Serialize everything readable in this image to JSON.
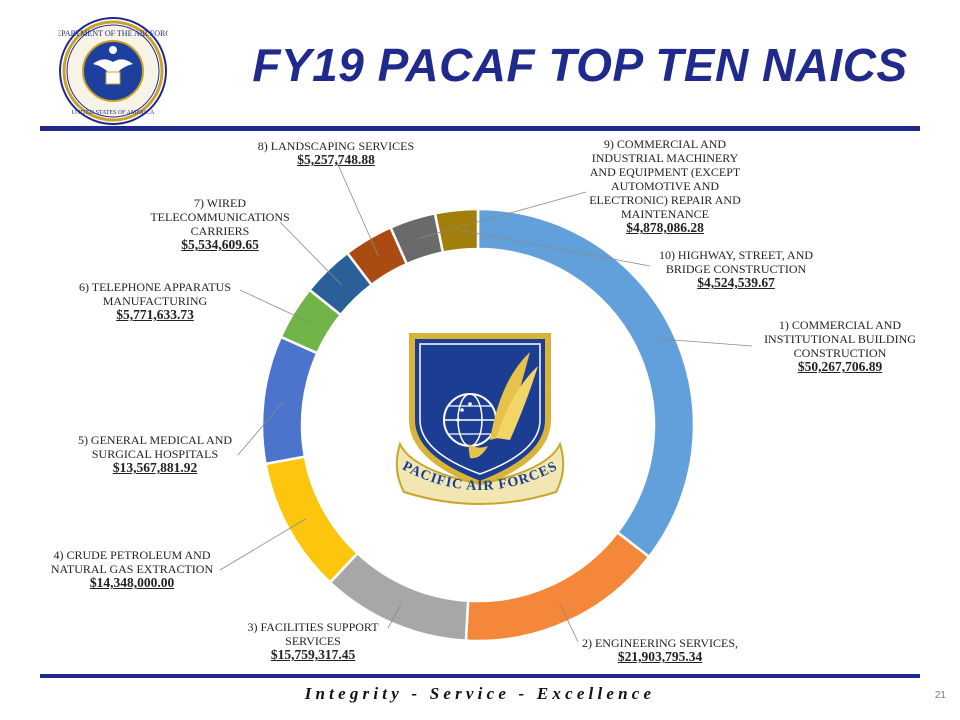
{
  "slide": {
    "title": "FY19 PACAF TOP TEN NAICS",
    "footer": "Integrity - Service - Excellence",
    "page_number": "21"
  },
  "emblem": {
    "text": "PACIFIC AIR FORCES"
  },
  "colors": {
    "title": "#1f2a8c",
    "rule": "#1f2a8c"
  },
  "chart_data": {
    "type": "pie",
    "style": "doughnut",
    "slices": [
      {
        "label": "1) COMMERCIAL AND INSTITUTIONAL BUILDING CONSTRUCTION",
        "value_label": "$50,267,706.89",
        "value": 50267706.89,
        "color": "#62a0db"
      },
      {
        "label": "2) ENGINEERING SERVICES,",
        "value_label": "$21,903,795.34",
        "value": 21903795.34,
        "color": "#f5873a"
      },
      {
        "label": "3) FACILITIES SUPPORT SERVICES",
        "value_label": "$15,759,317.45",
        "value": 15759317.45,
        "color": "#a7a7a7"
      },
      {
        "label": "4) CRUDE PETROLEUM AND NATURAL GAS EXTRACTION",
        "value_label": "$14,348,000.00",
        "value": 14348000.0,
        "color": "#fdc60e"
      },
      {
        "label": "5) GENERAL MEDICAL AND SURGICAL HOSPITALS",
        "value_label": "$13,567,881.92",
        "value": 13567881.92,
        "color": "#4c74cc"
      },
      {
        "label": "6) TELEPHONE APPARATUS MANUFACTURING",
        "value_label": "$5,771,633.73",
        "value": 5771633.73,
        "color": "#71b548"
      },
      {
        "label": "7) WIRED TELECOMMUNICATIONS CARRIERS",
        "value_label": "$5,534,609.65",
        "value": 5534609.65,
        "color": "#2b5f98"
      },
      {
        "label": "8) LANDSCAPING SERVICES",
        "value_label": "$5,257,748.88",
        "value": 5257748.88,
        "color": "#a94b12"
      },
      {
        "label": "9) COMMERCIAL AND INDUSTRIAL MACHINERY AND EQUIPMENT (EXCEPT AUTOMOTIVE AND ELECTRONIC) REPAIR AND MAINTENANCE",
        "value_label": "$4,878,086.28",
        "value": 4878086.28,
        "color": "#6a6a6a"
      },
      {
        "label": "10) HIGHWAY, STREET, AND BRIDGE CONSTRUCTION",
        "value_label": "$4,524,539.67",
        "value": 4524539.67,
        "color": "#a27e0b"
      }
    ],
    "legend": "none"
  }
}
